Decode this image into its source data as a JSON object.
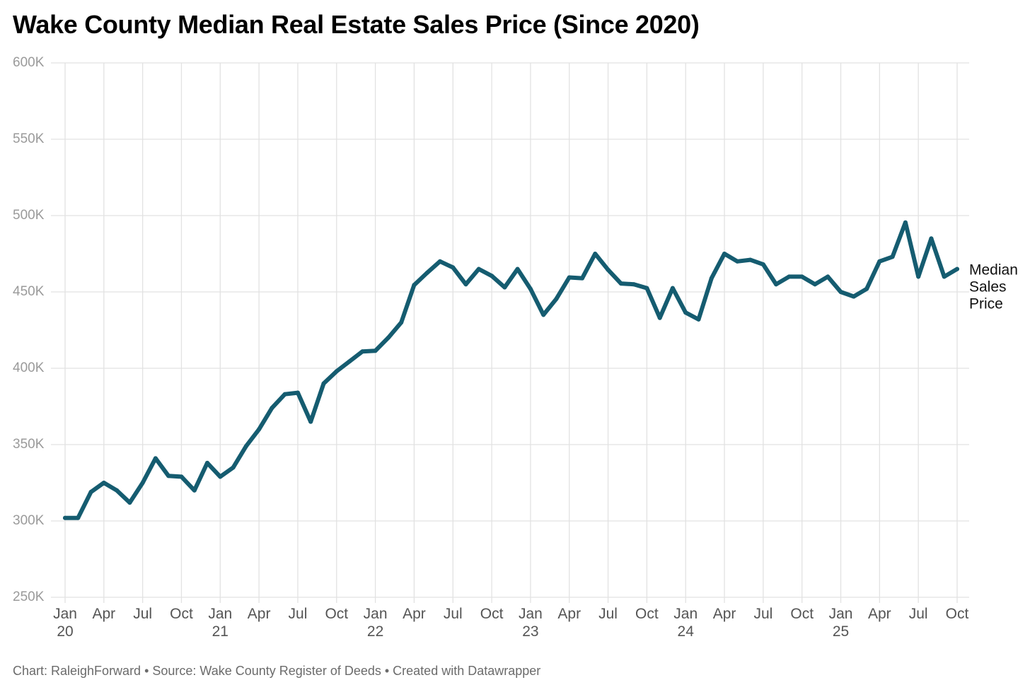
{
  "chart_data": {
    "type": "line",
    "title": "Wake County Median Real Estate Sales Price (Since 2020)",
    "xlabel": "",
    "ylabel": "",
    "ylim": [
      250000,
      600000
    ],
    "y_ticks": [
      {
        "value": 250000,
        "label": "250K"
      },
      {
        "value": 300000,
        "label": "300K"
      },
      {
        "value": 350000,
        "label": "350K"
      },
      {
        "value": 400000,
        "label": "400K"
      },
      {
        "value": 450000,
        "label": "450K"
      },
      {
        "value": 500000,
        "label": "500K"
      },
      {
        "value": 550000,
        "label": "550K"
      },
      {
        "value": 600000,
        "label": "600K"
      }
    ],
    "x_ticks": [
      {
        "date": "2020-01",
        "label": "Jan",
        "sublabel": "20"
      },
      {
        "date": "2020-04",
        "label": "Apr",
        "sublabel": ""
      },
      {
        "date": "2020-07",
        "label": "Jul",
        "sublabel": ""
      },
      {
        "date": "2020-10",
        "label": "Oct",
        "sublabel": ""
      },
      {
        "date": "2021-01",
        "label": "Jan",
        "sublabel": "21"
      },
      {
        "date": "2021-04",
        "label": "Apr",
        "sublabel": ""
      },
      {
        "date": "2021-07",
        "label": "Jul",
        "sublabel": ""
      },
      {
        "date": "2021-10",
        "label": "Oct",
        "sublabel": ""
      },
      {
        "date": "2022-01",
        "label": "Jan",
        "sublabel": "22"
      },
      {
        "date": "2022-04",
        "label": "Apr",
        "sublabel": ""
      },
      {
        "date": "2022-07",
        "label": "Jul",
        "sublabel": ""
      },
      {
        "date": "2022-10",
        "label": "Oct",
        "sublabel": ""
      },
      {
        "date": "2023-01",
        "label": "Jan",
        "sublabel": "23"
      },
      {
        "date": "2023-04",
        "label": "Apr",
        "sublabel": ""
      },
      {
        "date": "2023-07",
        "label": "Jul",
        "sublabel": ""
      },
      {
        "date": "2023-10",
        "label": "Oct",
        "sublabel": ""
      },
      {
        "date": "2024-01",
        "label": "Jan",
        "sublabel": "24"
      },
      {
        "date": "2024-04",
        "label": "Apr",
        "sublabel": ""
      },
      {
        "date": "2024-07",
        "label": "Jul",
        "sublabel": ""
      },
      {
        "date": "2024-10",
        "label": "Oct",
        "sublabel": ""
      },
      {
        "date": "2025-01",
        "label": "Jan",
        "sublabel": "25"
      },
      {
        "date": "2025-04",
        "label": "Apr",
        "sublabel": ""
      },
      {
        "date": "2025-07",
        "label": "Jul",
        "sublabel": ""
      },
      {
        "date": "2025-10",
        "label": "Oct",
        "sublabel": ""
      }
    ],
    "x_start": "2020-01",
    "x_end": "2025-10",
    "grid": true,
    "legend": "none",
    "series": [
      {
        "name": "Median Sales Price",
        "color": "#155c70",
        "points": [
          {
            "x": "2020-01",
            "y": 302000
          },
          {
            "x": "2020-02",
            "y": 302000
          },
          {
            "x": "2020-03",
            "y": 319000
          },
          {
            "x": "2020-04",
            "y": 325000
          },
          {
            "x": "2020-05",
            "y": 320000
          },
          {
            "x": "2020-06",
            "y": 312000
          },
          {
            "x": "2020-07",
            "y": 325000
          },
          {
            "x": "2020-08",
            "y": 341000
          },
          {
            "x": "2020-09",
            "y": 329500
          },
          {
            "x": "2020-10",
            "y": 329000
          },
          {
            "x": "2020-11",
            "y": 320000
          },
          {
            "x": "2020-12",
            "y": 338000
          },
          {
            "x": "2021-01",
            "y": 329000
          },
          {
            "x": "2021-02",
            "y": 335000
          },
          {
            "x": "2021-03",
            "y": 349000
          },
          {
            "x": "2021-04",
            "y": 360000
          },
          {
            "x": "2021-05",
            "y": 374000
          },
          {
            "x": "2021-06",
            "y": 383000
          },
          {
            "x": "2021-07",
            "y": 384000
          },
          {
            "x": "2021-08",
            "y": 365000
          },
          {
            "x": "2021-09",
            "y": 390000
          },
          {
            "x": "2021-10",
            "y": 398000
          },
          {
            "x": "2021-11",
            "y": 404500
          },
          {
            "x": "2021-12",
            "y": 411000
          },
          {
            "x": "2022-01",
            "y": 411500
          },
          {
            "x": "2022-02",
            "y": 420000
          },
          {
            "x": "2022-03",
            "y": 430000
          },
          {
            "x": "2022-04",
            "y": 454500
          },
          {
            "x": "2022-05",
            "y": 462500
          },
          {
            "x": "2022-06",
            "y": 470000
          },
          {
            "x": "2022-07",
            "y": 466000
          },
          {
            "x": "2022-08",
            "y": 455000
          },
          {
            "x": "2022-09",
            "y": 465000
          },
          {
            "x": "2022-10",
            "y": 460500
          },
          {
            "x": "2022-11",
            "y": 453000
          },
          {
            "x": "2022-12",
            "y": 465000
          },
          {
            "x": "2023-01",
            "y": 452000
          },
          {
            "x": "2023-02",
            "y": 435000
          },
          {
            "x": "2023-03",
            "y": 445500
          },
          {
            "x": "2023-04",
            "y": 459500
          },
          {
            "x": "2023-05",
            "y": 459000
          },
          {
            "x": "2023-06",
            "y": 475000
          },
          {
            "x": "2023-07",
            "y": 464500
          },
          {
            "x": "2023-08",
            "y": 455500
          },
          {
            "x": "2023-09",
            "y": 455000
          },
          {
            "x": "2023-10",
            "y": 452500
          },
          {
            "x": "2023-11",
            "y": 433000
          },
          {
            "x": "2023-12",
            "y": 452500
          },
          {
            "x": "2024-01",
            "y": 436500
          },
          {
            "x": "2024-02",
            "y": 432000
          },
          {
            "x": "2024-03",
            "y": 459000
          },
          {
            "x": "2024-04",
            "y": 475000
          },
          {
            "x": "2024-05",
            "y": 470000
          },
          {
            "x": "2024-06",
            "y": 471000
          },
          {
            "x": "2024-07",
            "y": 468000
          },
          {
            "x": "2024-08",
            "y": 455000
          },
          {
            "x": "2024-09",
            "y": 460000
          },
          {
            "x": "2024-10",
            "y": 460000
          },
          {
            "x": "2024-11",
            "y": 455000
          },
          {
            "x": "2024-12",
            "y": 460000
          },
          {
            "x": "2025-01",
            "y": 450000
          },
          {
            "x": "2025-02",
            "y": 447000
          },
          {
            "x": "2025-03",
            "y": 452000
          },
          {
            "x": "2025-04",
            "y": 470000
          },
          {
            "x": "2025-05",
            "y": 473000
          },
          {
            "x": "2025-06",
            "y": 495500
          },
          {
            "x": "2025-07",
            "y": 460000
          },
          {
            "x": "2025-08",
            "y": 485000
          },
          {
            "x": "2025-09",
            "y": 460000
          },
          {
            "x": "2025-10",
            "y": 465000
          }
        ]
      }
    ],
    "series_label_lines": [
      "Median",
      "Sales",
      "Price"
    ]
  },
  "footer": {
    "text": "Chart: RaleighForward • Source: Wake County Register of Deeds • Created with Datawrapper"
  },
  "colors": {
    "line": "#155c70",
    "grid": "#e2e2e2",
    "axis_text": "#555555",
    "y_axis_text": "#9a9a9a"
  }
}
